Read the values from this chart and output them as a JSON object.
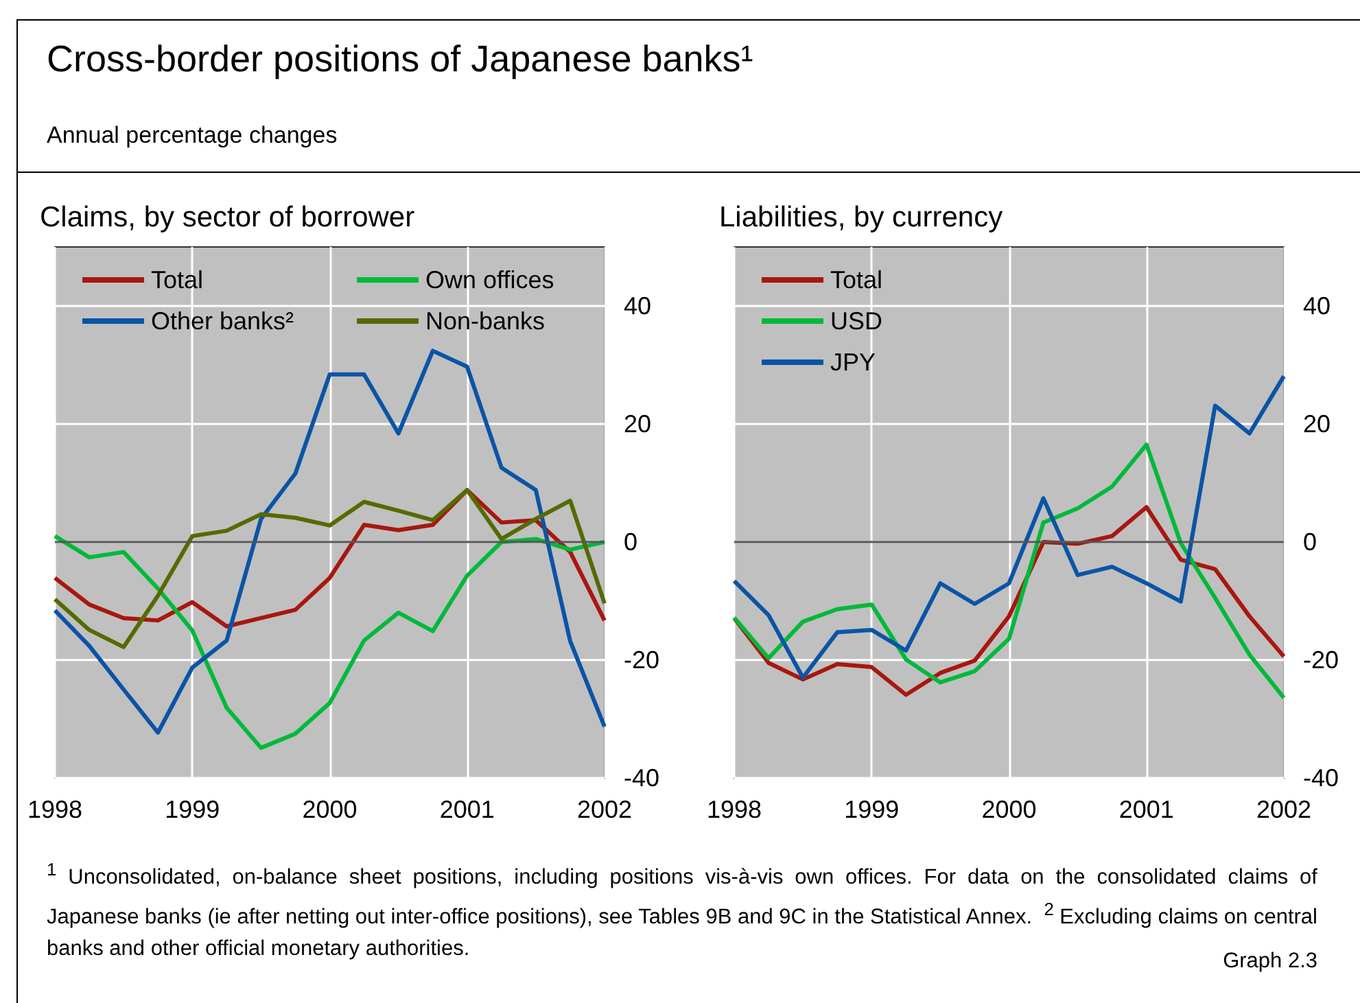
{
  "chart_data": [
    {
      "type": "other",
      "title": "Cross-border positions of Japanese banks¹",
      "subtitle": "Annual percentage changes",
      "annotations": [
        "$^{1}$ Unconsolidated, on-balance sheet positions, including positions vis-à-vis own offices. For data on the consolidated claims of Japanese banks (ie after netting out inter-office positions), see Tables 9B and 9C in the Statistical Annex.  $^{2}$ Excluding claims on central banks and other official monetary authorities.",
        "Graph 2.3"
      ]
    },
    {
      "type": "line",
      "title": "Claims, by sector of borrower",
      "x": [
        1998,
        1998.25,
        1998.5,
        1998.75,
        1999,
        1999.25,
        1999.5,
        1999.75,
        2000,
        2000.25,
        2000.5,
        2000.75,
        2001,
        2001.25,
        2001.5,
        2001.75,
        2002
      ],
      "xlim": [
        1998,
        2002
      ],
      "xticks": [
        1998,
        1999,
        2000,
        2001,
        2002
      ],
      "ylim": [
        -40,
        50
      ],
      "yticks": [
        -40,
        -20,
        0,
        20,
        40
      ],
      "grid": true,
      "legend": "top left",
      "ref_lines": [
        {
          "axis": "y",
          "value": 0,
          "color": "#555555"
        }
      ],
      "series": [
        {
          "name": "Total",
          "color": "#a8170f",
          "values": [
            -6.1,
            -10.6,
            -12.9,
            -13.3,
            -10.2,
            -14.3,
            -12.9,
            -11.5,
            -6.1,
            2.9,
            2.0,
            2.9,
            8.8,
            3.3,
            3.7,
            -1.7,
            -13.3
          ]
        },
        {
          "name": "Own offices",
          "color": "#00b93a",
          "values": [
            1.0,
            -2.6,
            -1.7,
            -7.9,
            -15.0,
            -28.1,
            -34.9,
            -32.5,
            -27.3,
            -16.7,
            -12.0,
            -15.1,
            -5.7,
            0,
            0.5,
            -1.3,
            0
          ]
        },
        {
          "name": "Other banks²",
          "color": "#0a54a6",
          "values": [
            -11.6,
            -17.6,
            -25.0,
            -32.3,
            -21.3,
            -16.7,
            3.9,
            11.6,
            28.4,
            28.4,
            18.4,
            32.4,
            29.7,
            12.6,
            8.8,
            -16.8,
            -31.3
          ]
        },
        {
          "name": "Non-banks",
          "color": "#556b00",
          "values": [
            -9.7,
            -14.9,
            -17.8,
            -9.1,
            1.0,
            1.9,
            4.7,
            4.1,
            2.8,
            6.8,
            5.3,
            3.7,
            8.8,
            0.5,
            3.9,
            7.0,
            -10.4
          ]
        }
      ]
    },
    {
      "type": "line",
      "title": "Liabilities, by currency",
      "x": [
        1998,
        1998.25,
        1998.5,
        1998.75,
        1999,
        1999.25,
        1999.5,
        1999.75,
        2000,
        2000.25,
        2000.5,
        2000.75,
        2001,
        2001.25,
        2001.5,
        2001.75,
        2002
      ],
      "xlim": [
        1998,
        2002
      ],
      "xticks": [
        1998,
        1999,
        2000,
        2001,
        2002
      ],
      "ylim": [
        -40,
        50
      ],
      "yticks": [
        -40,
        -20,
        0,
        20,
        40
      ],
      "grid": true,
      "legend": "top left",
      "ref_lines": [
        {
          "axis": "y",
          "value": 0,
          "color": "#555555"
        }
      ],
      "series": [
        {
          "name": "Total",
          "color": "#a8170f",
          "values": [
            -12.9,
            -20.5,
            -23.3,
            -20.7,
            -21.2,
            -25.9,
            -22.2,
            -20.1,
            -12.6,
            0,
            -0.3,
            1.0,
            5.9,
            -3.0,
            -4.6,
            -12.6,
            -19.4
          ]
        },
        {
          "name": "USD",
          "color": "#00b93a",
          "values": [
            -12.8,
            -19.7,
            -13.5,
            -11.4,
            -10.6,
            -19.9,
            -23.8,
            -21.9,
            -16.4,
            3.3,
            5.7,
            9.4,
            16.5,
            -0.2,
            -9.5,
            -19.1,
            -26.4
          ]
        },
        {
          "name": "JPY",
          "color": "#0a54a6",
          "values": [
            -6.6,
            -12.4,
            -23.0,
            -15.3,
            -14.9,
            -18.4,
            -7.0,
            -10.5,
            -7.0,
            7.4,
            -5.6,
            -4.2,
            -7.0,
            -10.1,
            23.1,
            18.4,
            28.1
          ]
        }
      ]
    }
  ]
}
